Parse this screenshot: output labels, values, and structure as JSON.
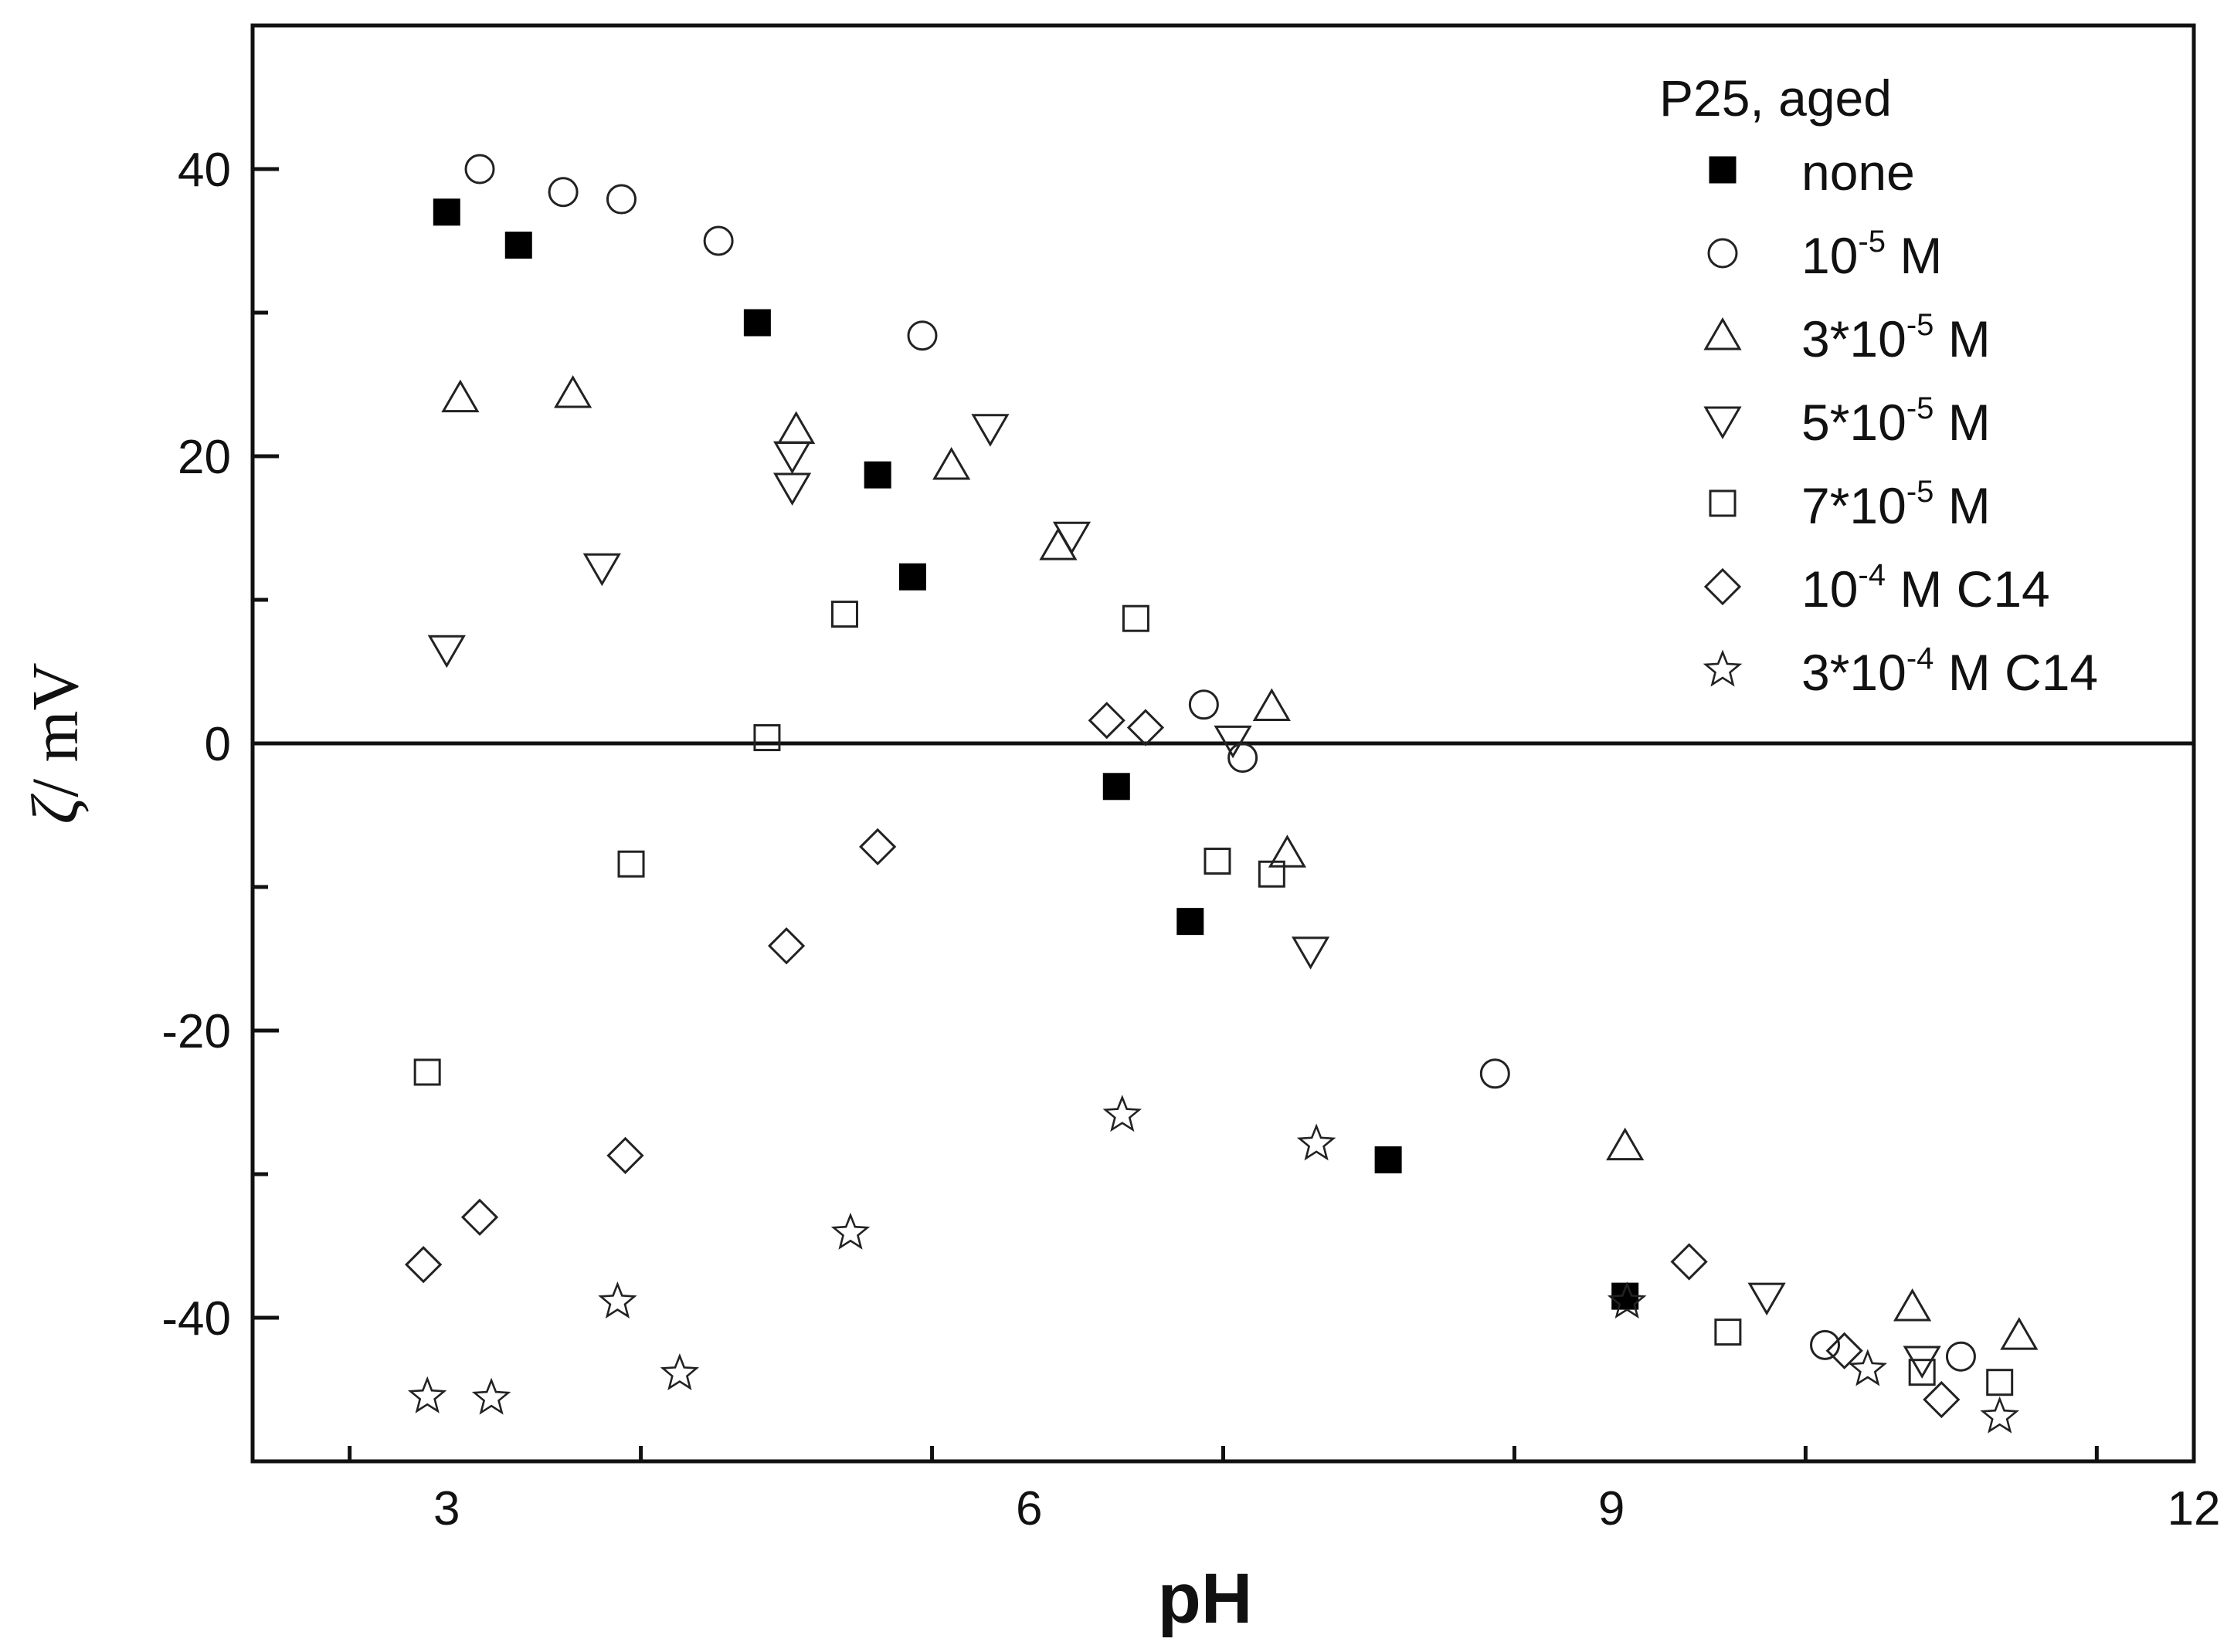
{
  "chart_data": {
    "type": "scatter",
    "title": "",
    "xlabel": "pH",
    "ylabel_symbol": "ζ",
    "ylabel_unit": "/ mV",
    "xlim": [
      2,
      12
    ],
    "ylim": [
      -50,
      50
    ],
    "x_ticks": [
      3,
      6,
      9,
      12
    ],
    "y_ticks": [
      40,
      20,
      0,
      -20,
      -40
    ],
    "x_tick_labels": [
      "3",
      "6",
      "9",
      "12"
    ],
    "y_tick_labels": [
      "40",
      "20",
      "0",
      "-20",
      "-40"
    ],
    "zero_line": true,
    "legend": {
      "title": "P25, aged",
      "position": "top-right"
    },
    "series": [
      {
        "name": "none",
        "legend_parts": [
          "none"
        ],
        "marker": "square-filled",
        "points": [
          [
            3.0,
            37
          ],
          [
            3.37,
            34.7
          ],
          [
            4.6,
            29.3
          ],
          [
            5.22,
            18.7
          ],
          [
            5.4,
            11.6
          ],
          [
            6.45,
            -3
          ],
          [
            6.83,
            -12.4
          ],
          [
            7.85,
            -29
          ],
          [
            9.07,
            -38.5
          ]
        ]
      },
      {
        "name": "10^-5 M",
        "legend_parts": [
          "10",
          "-5",
          " M"
        ],
        "marker": "circle",
        "points": [
          [
            3.17,
            40
          ],
          [
            3.6,
            38.4
          ],
          [
            3.9,
            37.9
          ],
          [
            4.4,
            35
          ],
          [
            5.45,
            28.4
          ],
          [
            6.9,
            2.7
          ],
          [
            7.1,
            -1
          ],
          [
            8.4,
            -23
          ],
          [
            10.1,
            -41.9
          ],
          [
            10.8,
            -42.7
          ]
        ]
      },
      {
        "name": "3*10^-5 M",
        "legend_parts": [
          "3*10",
          "-5",
          " M"
        ],
        "marker": "triangle-up",
        "points": [
          [
            3.07,
            24
          ],
          [
            3.65,
            24.3
          ],
          [
            4.8,
            21.8
          ],
          [
            5.6,
            19.3
          ],
          [
            6.15,
            13.7
          ],
          [
            7.25,
            2.5
          ],
          [
            7.33,
            -7.7
          ],
          [
            9.07,
            -28.1
          ],
          [
            10.55,
            -39.3
          ],
          [
            11.1,
            -41.3
          ]
        ]
      },
      {
        "name": "5*10^-5 M",
        "legend_parts": [
          "5*10",
          "-5",
          " M"
        ],
        "marker": "triangle-down",
        "points": [
          [
            3.0,
            6.6
          ],
          [
            3.8,
            12.3
          ],
          [
            4.78,
            20.1
          ],
          [
            4.78,
            17.9
          ],
          [
            5.8,
            22
          ],
          [
            6.22,
            14.5
          ],
          [
            7.05,
            0.3
          ],
          [
            7.45,
            -14.4
          ],
          [
            9.8,
            -38.5
          ],
          [
            10.6,
            -42.9
          ]
        ]
      },
      {
        "name": "7*10^-5 M",
        "legend_parts": [
          "7*10",
          "-5",
          " M"
        ],
        "marker": "square-open",
        "points": [
          [
            2.9,
            -22.9
          ],
          [
            3.95,
            -8.4
          ],
          [
            4.65,
            0.4
          ],
          [
            5.05,
            9
          ],
          [
            6.55,
            8.7
          ],
          [
            6.97,
            -8.2
          ],
          [
            7.25,
            -9.1
          ],
          [
            9.6,
            -41
          ],
          [
            10.6,
            -43.8
          ],
          [
            11.0,
            -44.5
          ]
        ]
      },
      {
        "name": "10^-4 M C14",
        "legend_parts": [
          "10",
          "-4",
          " M C14"
        ],
        "marker": "diamond",
        "points": [
          [
            2.88,
            -36.3
          ],
          [
            3.17,
            -33
          ],
          [
            3.92,
            -28.7
          ],
          [
            4.75,
            -14.1
          ],
          [
            5.22,
            -7.2
          ],
          [
            6.4,
            1.6
          ],
          [
            6.6,
            1.1
          ],
          [
            9.4,
            -36.1
          ],
          [
            10.2,
            -42.3
          ],
          [
            10.7,
            -45.7
          ]
        ]
      },
      {
        "name": "3*10^-4 M C14",
        "legend_parts": [
          "3*10",
          "-4",
          " M C14"
        ],
        "marker": "star",
        "points": [
          [
            2.9,
            -45.5
          ],
          [
            3.23,
            -45.6
          ],
          [
            3.88,
            -38.9
          ],
          [
            4.2,
            -43.9
          ],
          [
            5.08,
            -34.1
          ],
          [
            6.48,
            -25.9
          ],
          [
            7.48,
            -27.9
          ],
          [
            9.08,
            -38.9
          ],
          [
            10.32,
            -43.6
          ],
          [
            11.0,
            -46.9
          ]
        ]
      }
    ]
  }
}
